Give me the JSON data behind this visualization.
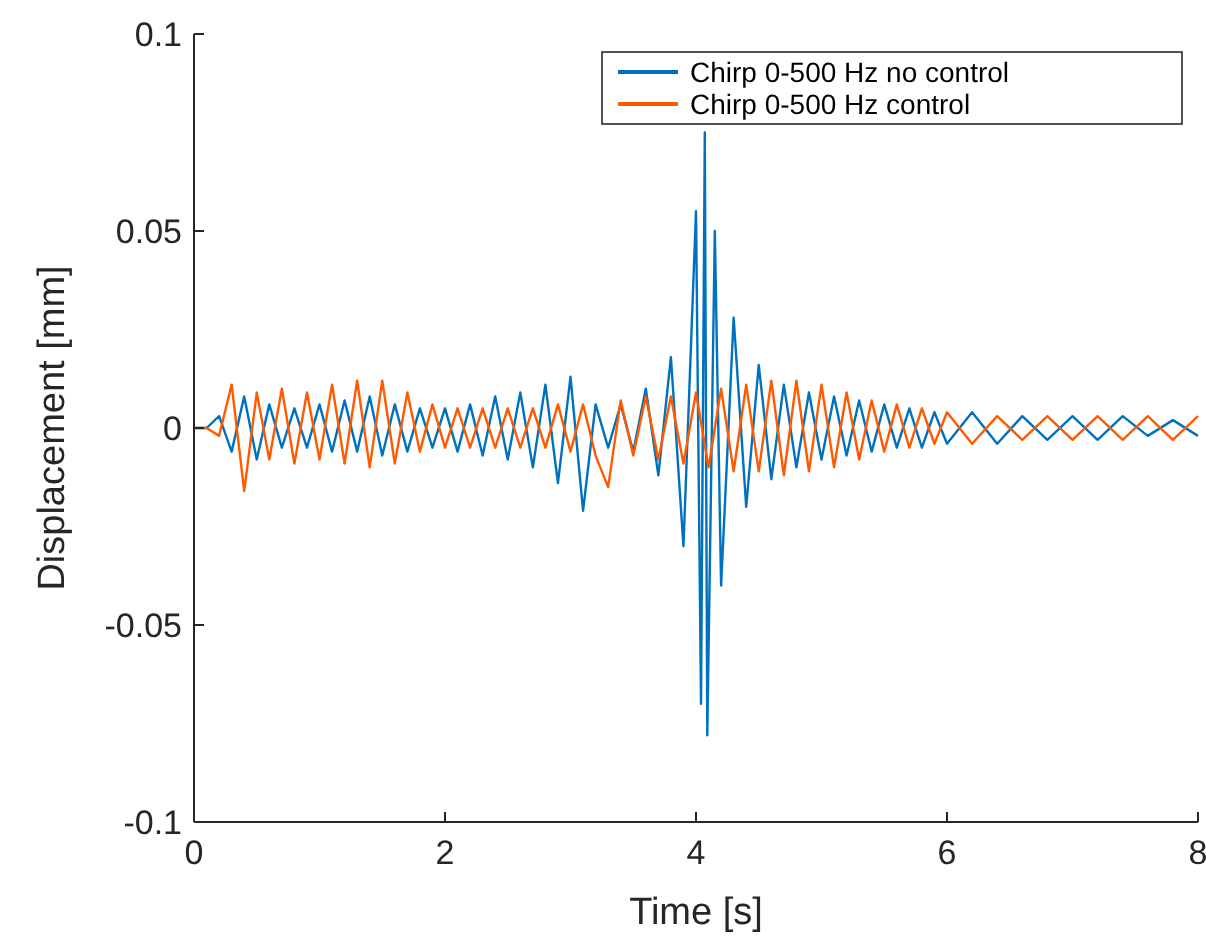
{
  "chart_data": {
    "type": "line",
    "xlabel": "Time [s]",
    "ylabel": "Displacement [mm]",
    "xlim": [
      0,
      8
    ],
    "ylim": [
      -0.1,
      0.1
    ],
    "xticks": [
      0,
      2,
      4,
      6,
      8
    ],
    "yticks": [
      -0.1,
      -0.05,
      0,
      0.05,
      0.1
    ],
    "grid": false,
    "legend": "top right",
    "line_style": "solid",
    "marker": "none",
    "series": [
      {
        "name": "Chirp 0-500 Hz no control",
        "color": "#0072bd",
        "x": [
          0,
          0.1,
          0.2,
          0.3,
          0.4,
          0.5,
          0.6,
          0.7,
          0.8,
          0.9,
          1.0,
          1.1,
          1.2,
          1.3,
          1.4,
          1.5,
          1.6,
          1.7,
          1.8,
          1.9,
          2.0,
          2.1,
          2.2,
          2.3,
          2.4,
          2.5,
          2.6,
          2.7,
          2.8,
          2.9,
          3.0,
          3.1,
          3.2,
          3.3,
          3.4,
          3.5,
          3.6,
          3.7,
          3.8,
          3.9,
          4.0,
          4.04,
          4.07,
          4.09,
          4.15,
          4.2,
          4.3,
          4.4,
          4.5,
          4.6,
          4.7,
          4.8,
          4.9,
          5.0,
          5.1,
          5.2,
          5.3,
          5.4,
          5.5,
          5.6,
          5.7,
          5.8,
          5.9,
          6.0,
          6.2,
          6.4,
          6.6,
          6.8,
          7.0,
          7.2,
          7.4,
          7.6,
          7.8,
          8.0
        ],
        "values": [
          0,
          0,
          0.003,
          -0.006,
          0.008,
          -0.008,
          0.006,
          -0.005,
          0.005,
          -0.005,
          0.006,
          -0.006,
          0.007,
          -0.006,
          0.008,
          -0.007,
          0.006,
          -0.006,
          0.005,
          -0.005,
          0.005,
          -0.006,
          0.006,
          -0.007,
          0.008,
          -0.008,
          0.009,
          -0.01,
          0.011,
          -0.014,
          0.013,
          -0.021,
          0.006,
          -0.005,
          0.006,
          -0.006,
          0.01,
          -0.012,
          0.018,
          -0.03,
          0.055,
          -0.07,
          0.075,
          -0.078,
          0.05,
          -0.04,
          0.028,
          -0.02,
          0.016,
          -0.013,
          0.011,
          -0.01,
          0.009,
          -0.008,
          0.008,
          -0.007,
          0.007,
          -0.006,
          0.006,
          -0.005,
          0.005,
          -0.005,
          0.004,
          -0.004,
          0.004,
          -0.004,
          0.003,
          -0.003,
          0.003,
          -0.003,
          0.003,
          -0.002,
          0.002,
          -0.002
        ]
      },
      {
        "name": "Chirp 0-500 Hz control",
        "color": "#ff5a00",
        "x": [
          0,
          0.1,
          0.2,
          0.3,
          0.4,
          0.5,
          0.6,
          0.7,
          0.8,
          0.9,
          1.0,
          1.1,
          1.2,
          1.3,
          1.4,
          1.5,
          1.6,
          1.7,
          1.8,
          1.9,
          2.0,
          2.1,
          2.2,
          2.3,
          2.4,
          2.5,
          2.6,
          2.7,
          2.8,
          2.9,
          3.0,
          3.1,
          3.2,
          3.3,
          3.4,
          3.5,
          3.6,
          3.7,
          3.8,
          3.9,
          4.0,
          4.1,
          4.2,
          4.3,
          4.4,
          4.5,
          4.6,
          4.7,
          4.8,
          4.9,
          5.0,
          5.1,
          5.2,
          5.3,
          5.4,
          5.5,
          5.6,
          5.7,
          5.8,
          5.9,
          6.0,
          6.2,
          6.4,
          6.6,
          6.8,
          7.0,
          7.2,
          7.4,
          7.6,
          7.8,
          8.0
        ],
        "values": [
          0,
          0,
          -0.002,
          0.011,
          -0.016,
          0.009,
          -0.008,
          0.01,
          -0.009,
          0.009,
          -0.008,
          0.011,
          -0.009,
          0.012,
          -0.01,
          0.012,
          -0.009,
          0.009,
          -0.006,
          0.006,
          -0.005,
          0.005,
          -0.005,
          0.005,
          -0.005,
          0.005,
          -0.005,
          0.005,
          -0.005,
          0.006,
          -0.006,
          0.006,
          -0.007,
          -0.015,
          0.007,
          -0.007,
          0.008,
          -0.008,
          0.008,
          -0.009,
          0.009,
          -0.01,
          0.01,
          -0.011,
          0.011,
          -0.011,
          0.012,
          -0.012,
          0.012,
          -0.011,
          0.011,
          -0.01,
          0.009,
          -0.008,
          0.007,
          -0.006,
          0.006,
          -0.005,
          0.005,
          -0.004,
          0.004,
          -0.004,
          0.003,
          -0.003,
          0.003,
          -0.003,
          0.003,
          -0.003,
          0.003,
          -0.003,
          0.003
        ]
      }
    ]
  }
}
